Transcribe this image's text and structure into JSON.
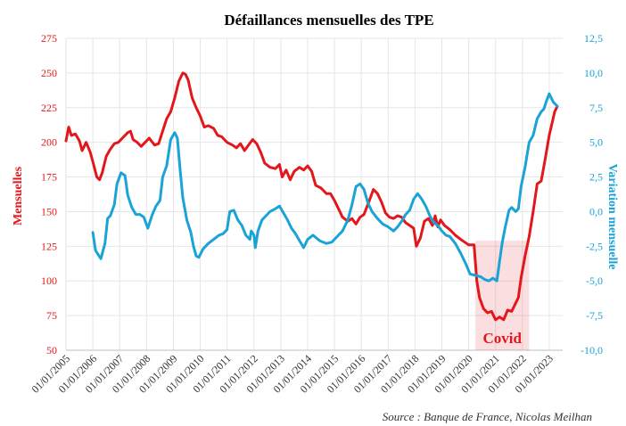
{
  "chart_data": {
    "type": "line",
    "title": "Défaillances mensuelles des TPE",
    "ylabel_left": "Mensuelles",
    "ylabel_right": "Variation mensuelle",
    "source": "Source : Banque de France, Nicolas Meilhan",
    "left_axis": {
      "range": [
        50,
        275
      ],
      "ticks": [
        "50",
        "75",
        "100",
        "125",
        "150",
        "175",
        "200",
        "225",
        "250",
        "275"
      ]
    },
    "right_axis": {
      "range": [
        -10.0,
        12.5
      ],
      "ticks": [
        "-10,0",
        "-7,5",
        "-5,0",
        "-2,5",
        "0,0",
        "2,5",
        "5,0",
        "7,5",
        "10,0",
        "12,5"
      ]
    },
    "x_ticks": [
      "01/01/2005",
      "01/01/2006",
      "01/01/2007",
      "01/01/2008",
      "01/01/2009",
      "01/01/2010",
      "01/01/2011",
      "01/01/2012",
      "01/01/2013",
      "01/01/2014",
      "01/01/2015",
      "01/01/2016",
      "01/01/2017",
      "01/01/2018",
      "01/01/2019",
      "01/01/2020",
      "01/01/2021",
      "01/01/2022",
      "01/01/2023"
    ],
    "x_range": [
      2005.0,
      2023.5
    ],
    "annotation": {
      "label": "Covid",
      "x_start": 2020.25,
      "x_end": 2022.25,
      "y_top": 129
    },
    "series": [
      {
        "name": "Mensuelles",
        "axis": "left",
        "color": "#e3171b",
        "points": [
          [
            2005.0,
            201
          ],
          [
            2005.1,
            211
          ],
          [
            2005.2,
            205
          ],
          [
            2005.35,
            206
          ],
          [
            2005.5,
            201
          ],
          [
            2005.6,
            194
          ],
          [
            2005.75,
            200
          ],
          [
            2005.9,
            193
          ],
          [
            2006.0,
            186
          ],
          [
            2006.15,
            175
          ],
          [
            2006.25,
            173
          ],
          [
            2006.35,
            178
          ],
          [
            2006.5,
            190
          ],
          [
            2006.65,
            195
          ],
          [
            2006.8,
            199
          ],
          [
            2006.95,
            200
          ],
          [
            2007.1,
            203
          ],
          [
            2007.3,
            207
          ],
          [
            2007.4,
            208
          ],
          [
            2007.5,
            202
          ],
          [
            2007.65,
            200
          ],
          [
            2007.8,
            197
          ],
          [
            2007.95,
            200
          ],
          [
            2008.1,
            203
          ],
          [
            2008.3,
            198
          ],
          [
            2008.45,
            199
          ],
          [
            2008.6,
            208
          ],
          [
            2008.75,
            217
          ],
          [
            2008.9,
            222
          ],
          [
            2009.05,
            232
          ],
          [
            2009.2,
            244
          ],
          [
            2009.35,
            250
          ],
          [
            2009.45,
            249
          ],
          [
            2009.55,
            245
          ],
          [
            2009.7,
            232
          ],
          [
            2009.85,
            225
          ],
          [
            2010.0,
            219
          ],
          [
            2010.15,
            211
          ],
          [
            2010.3,
            212
          ],
          [
            2010.5,
            210
          ],
          [
            2010.65,
            205
          ],
          [
            2010.8,
            204
          ],
          [
            2011.0,
            200
          ],
          [
            2011.2,
            198
          ],
          [
            2011.35,
            196
          ],
          [
            2011.5,
            199
          ],
          [
            2011.65,
            194
          ],
          [
            2011.8,
            198
          ],
          [
            2011.95,
            202
          ],
          [
            2012.1,
            199
          ],
          [
            2012.25,
            193
          ],
          [
            2012.4,
            185
          ],
          [
            2012.6,
            182
          ],
          [
            2012.8,
            181
          ],
          [
            2012.95,
            184
          ],
          [
            2013.05,
            175
          ],
          [
            2013.2,
            180
          ],
          [
            2013.35,
            173
          ],
          [
            2013.5,
            179
          ],
          [
            2013.7,
            182
          ],
          [
            2013.85,
            180
          ],
          [
            2014.0,
            183
          ],
          [
            2014.15,
            179
          ],
          [
            2014.3,
            169
          ],
          [
            2014.5,
            167
          ],
          [
            2014.7,
            163
          ],
          [
            2014.85,
            163
          ],
          [
            2015.0,
            158
          ],
          [
            2015.15,
            152
          ],
          [
            2015.3,
            146
          ],
          [
            2015.5,
            143
          ],
          [
            2015.65,
            145
          ],
          [
            2015.8,
            141
          ],
          [
            2015.95,
            146
          ],
          [
            2016.1,
            148
          ],
          [
            2016.3,
            158
          ],
          [
            2016.45,
            166
          ],
          [
            2016.6,
            163
          ],
          [
            2016.75,
            157
          ],
          [
            2016.9,
            149
          ],
          [
            2017.05,
            146
          ],
          [
            2017.2,
            145
          ],
          [
            2017.35,
            147
          ],
          [
            2017.5,
            146
          ],
          [
            2017.65,
            142
          ],
          [
            2017.8,
            140
          ],
          [
            2017.95,
            138
          ],
          [
            2018.05,
            125
          ],
          [
            2018.2,
            131
          ],
          [
            2018.35,
            143
          ],
          [
            2018.5,
            145
          ],
          [
            2018.65,
            140
          ],
          [
            2018.75,
            147
          ],
          [
            2018.85,
            139
          ],
          [
            2018.95,
            144
          ],
          [
            2019.1,
            140
          ],
          [
            2019.3,
            137
          ],
          [
            2019.5,
            133
          ],
          [
            2019.7,
            130
          ],
          [
            2019.85,
            128
          ],
          [
            2020.0,
            126
          ],
          [
            2020.2,
            126
          ],
          [
            2020.3,
            100
          ],
          [
            2020.4,
            88
          ],
          [
            2020.55,
            80
          ],
          [
            2020.7,
            77
          ],
          [
            2020.85,
            78
          ],
          [
            2021.0,
            72
          ],
          [
            2021.15,
            74
          ],
          [
            2021.3,
            72
          ],
          [
            2021.45,
            79
          ],
          [
            2021.6,
            78
          ],
          [
            2021.75,
            84
          ],
          [
            2021.85,
            88
          ],
          [
            2021.95,
            102
          ],
          [
            2022.1,
            118
          ],
          [
            2022.25,
            132
          ],
          [
            2022.4,
            150
          ],
          [
            2022.55,
            170
          ],
          [
            2022.7,
            172
          ],
          [
            2022.85,
            188
          ],
          [
            2023.0,
            205
          ],
          [
            2023.2,
            222
          ],
          [
            2023.3,
            226
          ]
        ]
      },
      {
        "name": "Variation mensuelle",
        "axis": "right",
        "color": "#1aa3d6",
        "points": [
          [
            2006.0,
            -1.5
          ],
          [
            2006.1,
            -2.8
          ],
          [
            2006.2,
            -3.1
          ],
          [
            2006.3,
            -3.4
          ],
          [
            2006.45,
            -2.3
          ],
          [
            2006.55,
            -0.5
          ],
          [
            2006.65,
            -0.3
          ],
          [
            2006.8,
            0.5
          ],
          [
            2006.9,
            2.0
          ],
          [
            2007.05,
            2.8
          ],
          [
            2007.2,
            2.6
          ],
          [
            2007.3,
            1.2
          ],
          [
            2007.45,
            0.3
          ],
          [
            2007.6,
            -0.2
          ],
          [
            2007.75,
            -0.2
          ],
          [
            2007.9,
            -0.4
          ],
          [
            2008.05,
            -1.2
          ],
          [
            2008.2,
            -0.3
          ],
          [
            2008.35,
            0.4
          ],
          [
            2008.5,
            0.8
          ],
          [
            2008.6,
            2.5
          ],
          [
            2008.75,
            3.3
          ],
          [
            2008.9,
            5.2
          ],
          [
            2009.05,
            5.7
          ],
          [
            2009.15,
            5.3
          ],
          [
            2009.25,
            3.0
          ],
          [
            2009.35,
            1.0
          ],
          [
            2009.5,
            -0.6
          ],
          [
            2009.65,
            -1.5
          ],
          [
            2009.75,
            -2.5
          ],
          [
            2009.85,
            -3.2
          ],
          [
            2009.95,
            -3.3
          ],
          [
            2010.1,
            -2.7
          ],
          [
            2010.3,
            -2.3
          ],
          [
            2010.5,
            -2.0
          ],
          [
            2010.7,
            -1.7
          ],
          [
            2010.85,
            -1.6
          ],
          [
            2011.0,
            -1.3
          ],
          [
            2011.1,
            0.0
          ],
          [
            2011.25,
            0.1
          ],
          [
            2011.4,
            -0.6
          ],
          [
            2011.55,
            -1.0
          ],
          [
            2011.7,
            -1.7
          ],
          [
            2011.85,
            -2.0
          ],
          [
            2011.9,
            -1.4
          ],
          [
            2012.0,
            -1.7
          ],
          [
            2012.05,
            -2.6
          ],
          [
            2012.15,
            -1.4
          ],
          [
            2012.3,
            -0.6
          ],
          [
            2012.45,
            -0.3
          ],
          [
            2012.6,
            0.0
          ],
          [
            2012.8,
            0.2
          ],
          [
            2012.95,
            0.4
          ],
          [
            2013.1,
            -0.1
          ],
          [
            2013.25,
            -0.6
          ],
          [
            2013.4,
            -1.2
          ],
          [
            2013.55,
            -1.6
          ],
          [
            2013.7,
            -2.1
          ],
          [
            2013.85,
            -2.6
          ],
          [
            2014.0,
            -2.0
          ],
          [
            2014.2,
            -1.7
          ],
          [
            2014.45,
            -2.1
          ],
          [
            2014.7,
            -2.3
          ],
          [
            2014.9,
            -2.2
          ],
          [
            2015.1,
            -1.8
          ],
          [
            2015.3,
            -1.4
          ],
          [
            2015.5,
            -0.6
          ],
          [
            2015.65,
            0.5
          ],
          [
            2015.8,
            1.8
          ],
          [
            2015.95,
            2.0
          ],
          [
            2016.1,
            1.6
          ],
          [
            2016.25,
            0.6
          ],
          [
            2016.4,
            0.0
          ],
          [
            2016.6,
            -0.5
          ],
          [
            2016.8,
            -0.9
          ],
          [
            2017.0,
            -1.1
          ],
          [
            2017.2,
            -1.4
          ],
          [
            2017.35,
            -1.1
          ],
          [
            2017.5,
            -0.7
          ],
          [
            2017.65,
            -0.2
          ],
          [
            2017.8,
            0.1
          ],
          [
            2017.95,
            0.9
          ],
          [
            2018.1,
            1.3
          ],
          [
            2018.25,
            0.9
          ],
          [
            2018.4,
            0.4
          ],
          [
            2018.55,
            -0.3
          ],
          [
            2018.7,
            -0.8
          ],
          [
            2018.85,
            -1.0
          ],
          [
            2019.0,
            -1.4
          ],
          [
            2019.15,
            -1.7
          ],
          [
            2019.3,
            -1.8
          ],
          [
            2019.5,
            -2.3
          ],
          [
            2019.7,
            -3.0
          ],
          [
            2019.9,
            -3.8
          ],
          [
            2020.05,
            -4.5
          ],
          [
            2020.25,
            -4.6
          ],
          [
            2020.45,
            -4.7
          ],
          [
            2020.6,
            -4.9
          ],
          [
            2020.75,
            -5.0
          ],
          [
            2020.9,
            -4.8
          ],
          [
            2021.05,
            -5.0
          ],
          [
            2021.15,
            -3.6
          ],
          [
            2021.25,
            -2.2
          ],
          [
            2021.35,
            -1.2
          ],
          [
            2021.5,
            0.1
          ],
          [
            2021.6,
            0.3
          ],
          [
            2021.75,
            0.0
          ],
          [
            2021.85,
            0.2
          ],
          [
            2021.95,
            1.8
          ],
          [
            2022.1,
            3.2
          ],
          [
            2022.25,
            5.0
          ],
          [
            2022.4,
            5.5
          ],
          [
            2022.55,
            6.7
          ],
          [
            2022.7,
            7.2
          ],
          [
            2022.8,
            7.4
          ],
          [
            2022.9,
            8.0
          ],
          [
            2023.0,
            8.5
          ],
          [
            2023.15,
            7.9
          ],
          [
            2023.3,
            7.6
          ]
        ]
      }
    ]
  }
}
